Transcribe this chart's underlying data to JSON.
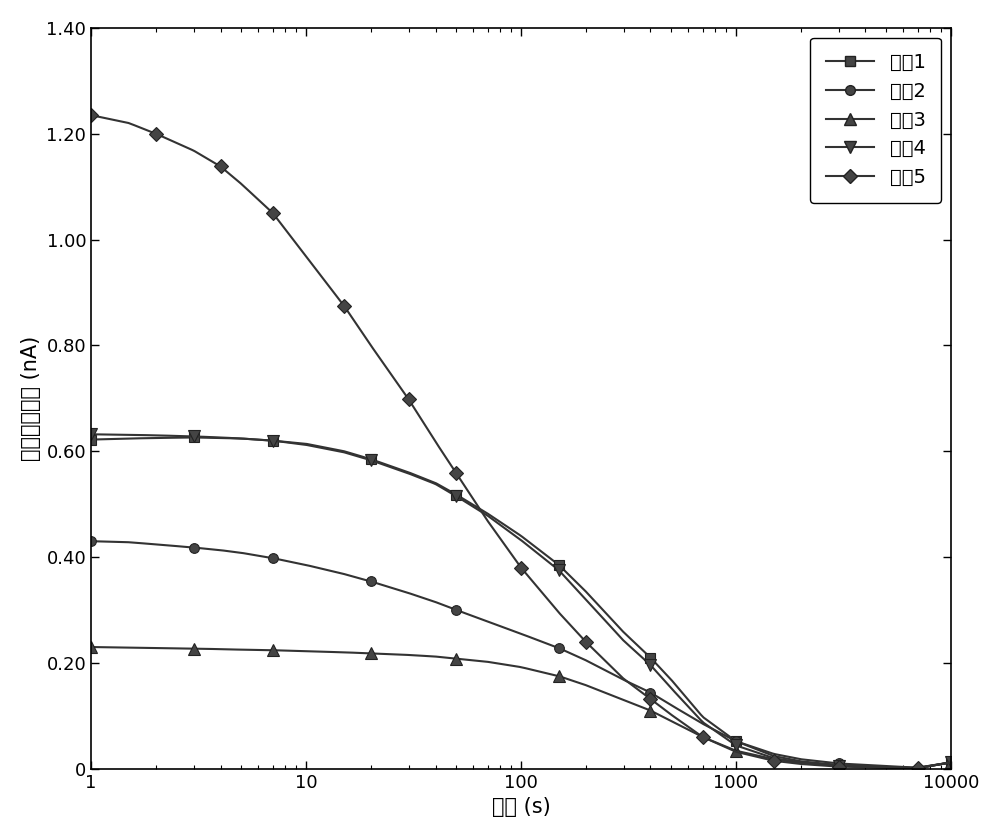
{
  "title": "",
  "xlabel": "时间 (s)",
  "ylabel": "等温放电电流 (nA)",
  "xlim": [
    1,
    10000
  ],
  "ylim": [
    0,
    1.4
  ],
  "yticks": [
    0,
    0.2,
    0.4,
    0.6,
    0.8,
    1.0,
    1.2,
    1.4
  ],
  "ytick_labels": [
    "0",
    "0.20",
    "0.40",
    "0.60",
    "0.80",
    "1.00",
    "1.20",
    "1.40"
  ],
  "xtick_labels": [
    "1",
    "10",
    "100",
    "1000",
    "10000"
  ],
  "xtick_positions": [
    1,
    10,
    100,
    1000,
    10000
  ],
  "legend_labels": [
    "试样1",
    "试样2",
    "试样3",
    "试样4",
    "试样5"
  ],
  "line_color": "#333333",
  "marker_styles": [
    "s",
    "o",
    "^",
    "v",
    "D"
  ],
  "series": {
    "sample1": {
      "x": [
        1,
        1.5,
        2,
        3,
        4,
        5,
        7,
        10,
        15,
        20,
        30,
        40,
        50,
        70,
        100,
        150,
        200,
        300,
        400,
        500,
        700,
        1000,
        1500,
        2000,
        3000,
        5000,
        7000,
        10000
      ],
      "y": [
        0.622,
        0.624,
        0.625,
        0.626,
        0.625,
        0.624,
        0.62,
        0.614,
        0.6,
        0.585,
        0.56,
        0.54,
        0.518,
        0.482,
        0.44,
        0.385,
        0.335,
        0.258,
        0.21,
        0.168,
        0.098,
        0.052,
        0.024,
        0.014,
        0.007,
        0.003,
        0.002,
        0.012
      ]
    },
    "sample2": {
      "x": [
        1,
        1.5,
        2,
        3,
        4,
        5,
        7,
        10,
        15,
        20,
        30,
        40,
        50,
        70,
        100,
        150,
        200,
        300,
        400,
        500,
        700,
        1000,
        1500,
        2000,
        3000,
        5000,
        7000,
        10000
      ],
      "y": [
        0.43,
        0.428,
        0.424,
        0.418,
        0.413,
        0.408,
        0.398,
        0.385,
        0.368,
        0.354,
        0.332,
        0.315,
        0.3,
        0.278,
        0.255,
        0.228,
        0.205,
        0.168,
        0.144,
        0.12,
        0.085,
        0.052,
        0.028,
        0.018,
        0.01,
        0.005,
        0.002,
        0.012
      ]
    },
    "sample3": {
      "x": [
        1,
        1.5,
        2,
        3,
        4,
        5,
        7,
        10,
        15,
        20,
        30,
        40,
        50,
        70,
        100,
        150,
        200,
        300,
        400,
        500,
        700,
        1000,
        1500,
        2000,
        3000,
        5000,
        7000,
        10000
      ],
      "y": [
        0.23,
        0.229,
        0.228,
        0.227,
        0.226,
        0.225,
        0.224,
        0.222,
        0.22,
        0.218,
        0.215,
        0.212,
        0.208,
        0.202,
        0.192,
        0.175,
        0.158,
        0.13,
        0.11,
        0.09,
        0.06,
        0.034,
        0.018,
        0.011,
        0.006,
        0.003,
        0.001,
        0.012
      ]
    },
    "sample4": {
      "x": [
        1,
        1.5,
        2,
        3,
        4,
        5,
        7,
        10,
        15,
        20,
        30,
        40,
        50,
        70,
        100,
        150,
        200,
        300,
        400,
        500,
        700,
        1000,
        1500,
        2000,
        3000,
        5000,
        7000,
        10000
      ],
      "y": [
        0.632,
        0.631,
        0.63,
        0.628,
        0.626,
        0.624,
        0.62,
        0.612,
        0.598,
        0.583,
        0.558,
        0.538,
        0.515,
        0.478,
        0.432,
        0.375,
        0.32,
        0.242,
        0.196,
        0.152,
        0.088,
        0.044,
        0.02,
        0.012,
        0.006,
        0.002,
        0.001,
        0.012
      ]
    },
    "sample5": {
      "x": [
        1,
        1.5,
        2,
        3,
        4,
        5,
        7,
        10,
        15,
        20,
        30,
        40,
        50,
        70,
        100,
        150,
        200,
        300,
        400,
        500,
        700,
        1000,
        1500,
        2000,
        3000,
        5000,
        7000,
        10000
      ],
      "y": [
        1.235,
        1.22,
        1.2,
        1.168,
        1.138,
        1.105,
        1.05,
        0.968,
        0.875,
        0.8,
        0.698,
        0.618,
        0.558,
        0.468,
        0.38,
        0.295,
        0.24,
        0.17,
        0.132,
        0.102,
        0.06,
        0.032,
        0.015,
        0.009,
        0.004,
        0.002,
        0.001,
        0.012
      ]
    }
  }
}
